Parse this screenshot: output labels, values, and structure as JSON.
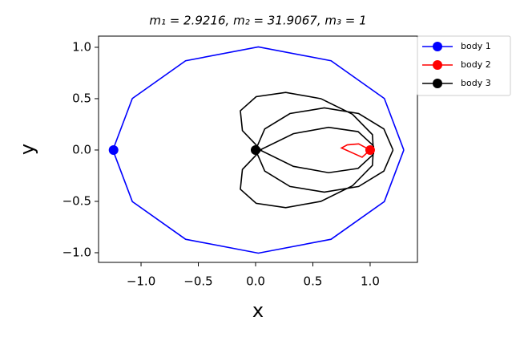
{
  "chart_data": {
    "type": "line",
    "title": "m₁ = 2.9216, m₂ = 31.9067, m₃ = 1",
    "x_label": "x",
    "y_label": "y",
    "xlim": [
      -1.371,
      1.413
    ],
    "ylim": [
      -1.094,
      1.109
    ],
    "xticks": [
      {
        "value": -1.0,
        "label": "−1.0"
      },
      {
        "value": -0.5,
        "label": "−0.5"
      },
      {
        "value": 0.0,
        "label": "0.0"
      },
      {
        "value": 0.5,
        "label": "0.5"
      },
      {
        "value": 1.0,
        "label": "1.0"
      }
    ],
    "yticks": [
      {
        "value": -1.0,
        "label": "−1.0"
      },
      {
        "value": -0.5,
        "label": "−0.5"
      },
      {
        "value": 0.0,
        "label": "0.0"
      },
      {
        "value": 0.5,
        "label": "0.5"
      },
      {
        "value": 1.0,
        "label": "1.0"
      }
    ],
    "legend": "outside-upper-right",
    "series": [
      {
        "name": "body 1",
        "color": "#0000ff",
        "x": [
          1.294,
          1.124,
          0.659,
          0.024,
          -0.611,
          -1.076,
          -1.246,
          -1.076,
          -0.611,
          0.024,
          0.659,
          1.124,
          1.294
        ],
        "y": [
          0,
          0.502,
          0.869,
          1.004,
          0.869,
          0.502,
          0,
          -0.502,
          -0.869,
          -1.004,
          -0.869,
          -0.502,
          0
        ],
        "marker": [
          -1.24,
          0
        ]
      },
      {
        "name": "body 2",
        "color": "#ff0000",
        "x": [
          1.0,
          0.9,
          0.8,
          0.75,
          0.85,
          0.93,
          1.0
        ],
        "y": [
          0,
          0.06,
          0.05,
          0.02,
          -0.03,
          -0.07,
          0
        ],
        "marker": [
          1.0,
          0
        ]
      },
      {
        "name": "body 3",
        "color": "#000000",
        "x": [
          1.2,
          1.12,
          0.9,
          0.6,
          0.3,
          0.08,
          0,
          0.08,
          0.3,
          0.6,
          0.9,
          1.12,
          1.2,
          null,
          1.03,
          1.02,
          0.845,
          0.57,
          0.263,
          0.005,
          -0.133,
          -0.115,
          0.055,
          0.33,
          0.637,
          0.895,
          1.03,
          null,
          1.03,
          1.02,
          0.845,
          0.57,
          0.263,
          0.005,
          -0.133,
          -0.115,
          0.055,
          0.33,
          0.637,
          0.895,
          1.03
        ],
        "y": [
          0,
          0.205,
          0.355,
          0.41,
          0.355,
          0.205,
          0,
          -0.205,
          -0.355,
          -0.41,
          -0.355,
          -0.205,
          0,
          null,
          -0.04,
          0.15,
          0.349,
          0.5,
          0.561,
          0.519,
          0.382,
          0.189,
          -0.009,
          -0.159,
          -0.221,
          -0.179,
          -0.04,
          null,
          0.04,
          -0.15,
          -0.349,
          -0.5,
          -0.561,
          -0.519,
          -0.382,
          -0.189,
          0.009,
          0.159,
          0.221,
          0.179,
          0.04
        ],
        "marker": [
          0,
          0
        ]
      }
    ]
  }
}
